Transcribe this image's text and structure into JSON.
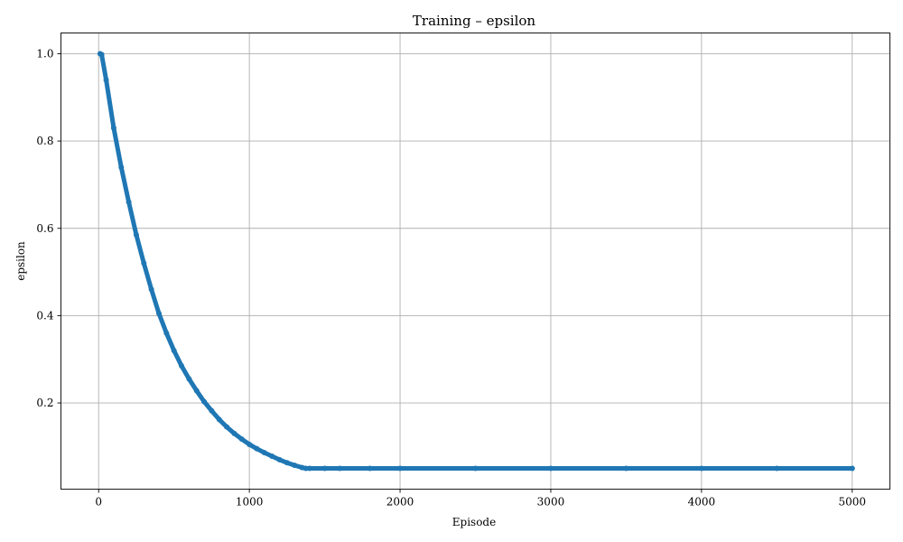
{
  "chart_data": {
    "type": "line",
    "title": "Training – epsilon",
    "xlabel": "Episode",
    "ylabel": "epsilon",
    "xlim": [
      -250,
      5250
    ],
    "ylim": [
      0.0025,
      1.0475
    ],
    "xticks": [
      0,
      1000,
      2000,
      3000,
      4000,
      5000
    ],
    "yticks": [
      0.2,
      0.4,
      0.6,
      0.8,
      1.0
    ],
    "xtick_labels": [
      "0",
      "1000",
      "2000",
      "3000",
      "4000",
      "5000"
    ],
    "ytick_labels": [
      "0.2",
      "0.4",
      "0.6",
      "0.8",
      "1.0"
    ],
    "grid": true,
    "legend": "none",
    "color": "#1f77b4",
    "marker": "circle",
    "series": [
      {
        "x": [
          10,
          20,
          50,
          100,
          150,
          200,
          250,
          300,
          350,
          400,
          450,
          500,
          550,
          600,
          650,
          700,
          750,
          800,
          850,
          900,
          950,
          1000,
          1050,
          1100,
          1150,
          1200,
          1250,
          1300,
          1350,
          1375,
          1400,
          1500,
          1600,
          1800,
          2000,
          2500,
          3000,
          3500,
          4000,
          4500,
          5000
        ],
        "y": [
          1.0,
          0.998,
          0.94,
          0.83,
          0.74,
          0.66,
          0.585,
          0.52,
          0.46,
          0.405,
          0.36,
          0.32,
          0.285,
          0.255,
          0.228,
          0.203,
          0.182,
          0.162,
          0.145,
          0.13,
          0.117,
          0.105,
          0.095,
          0.086,
          0.078,
          0.07,
          0.063,
          0.057,
          0.052,
          0.05,
          0.05,
          0.05,
          0.05,
          0.05,
          0.05,
          0.05,
          0.05,
          0.05,
          0.05,
          0.05,
          0.05
        ]
      }
    ]
  }
}
